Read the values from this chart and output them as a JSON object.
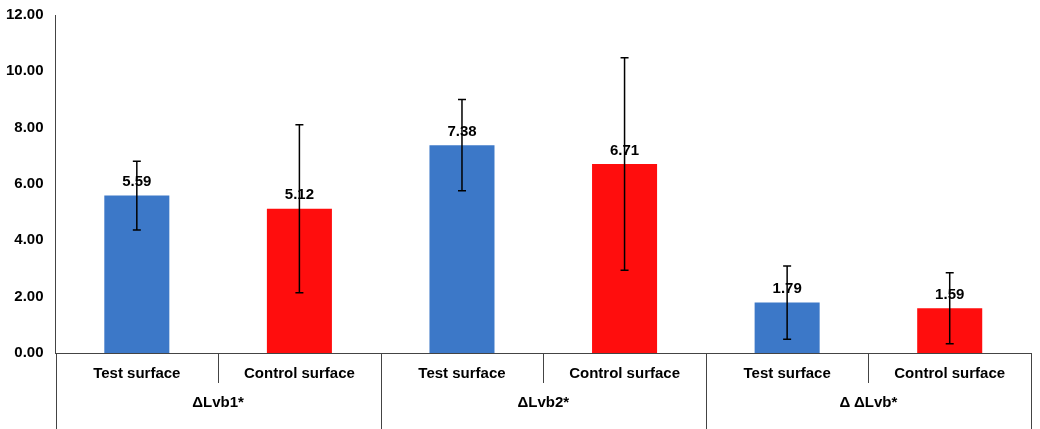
{
  "chart_data": {
    "type": "bar",
    "categories": [
      "Test surface",
      "Control surface",
      "Test surface",
      "Control surface",
      "Test surface",
      "Control surface"
    ],
    "values": [
      5.59,
      5.12,
      7.38,
      6.71,
      1.79,
      1.59
    ],
    "colors": [
      "#3c78c8",
      "#ff0d0d",
      "#3c78c8",
      "#ff0d0d",
      "#3c78c8",
      "#ff0d0d"
    ],
    "errors": [
      1.22,
      2.98,
      1.62,
      3.77,
      1.3,
      1.26
    ],
    "ylim": [
      0,
      12
    ],
    "yticks": [
      {
        "value": 0,
        "label": "0.00"
      },
      {
        "value": 2,
        "label": "2.00"
      },
      {
        "value": 4,
        "label": "4.00"
      },
      {
        "value": 6,
        "label": "6.00"
      },
      {
        "value": 8,
        "label": "8.00"
      },
      {
        "value": 10,
        "label": "10.00"
      },
      {
        "value": 12,
        "label": "12.00"
      }
    ],
    "grid": false,
    "data_labels": true,
    "annotations": [
      "ΔLvb1*",
      "ΔLvb2*",
      "Δ ΔLvb*"
    ]
  }
}
